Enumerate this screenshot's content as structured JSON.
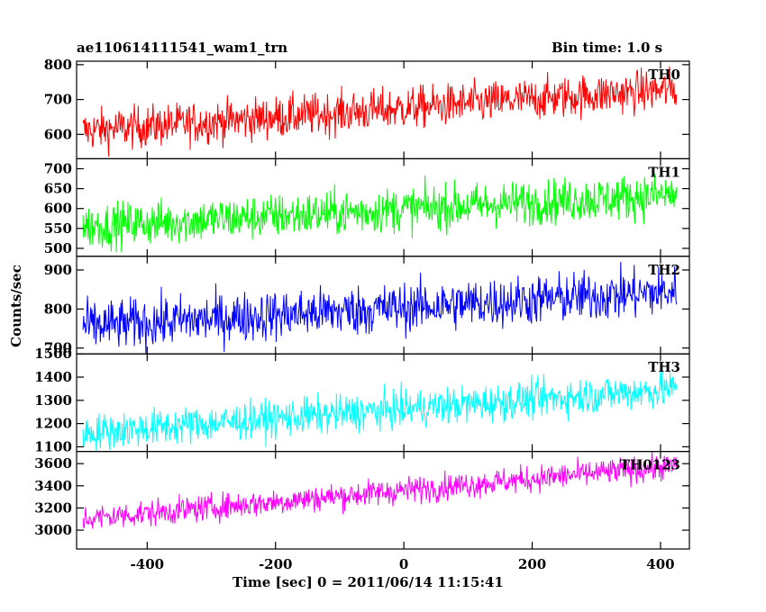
{
  "header": {
    "title": "ae110614111541_wam1_trn",
    "bin_time": "Bin time: 1.0 s"
  },
  "chart_data": {
    "type": "line",
    "title": "ae110614111541_wam1_trn",
    "xlabel": "Time [sec] 0 = 2011/06/14 11:15:41",
    "ylabel": "Counts/sec",
    "xlim": [
      -510,
      445
    ],
    "x_ticks": [
      -400,
      -200,
      0,
      200,
      400
    ],
    "x_range": [
      -500,
      425
    ],
    "panels": [
      {
        "label": "TH0",
        "color": "#ff0000",
        "ylim": [
          530,
          810
        ],
        "y_ticks": [
          600,
          700,
          800
        ],
        "trend_start": 610,
        "trend_end": 730,
        "noise": 30
      },
      {
        "label": "TH1",
        "color": "#00ff00",
        "ylim": [
          480,
          725
        ],
        "y_ticks": [
          500,
          550,
          600,
          650,
          700
        ],
        "trend_start": 555,
        "trend_end": 635,
        "noise": 28
      },
      {
        "label": "TH2",
        "color": "#0000ff",
        "ylim": [
          685,
          935
        ],
        "y_ticks": [
          700,
          800,
          900
        ],
        "trend_start": 755,
        "trend_end": 845,
        "noise": 32
      },
      {
        "label": "TH3",
        "color": "#00ffff",
        "ylim": [
          1080,
          1500
        ],
        "y_ticks": [
          1100,
          1200,
          1300,
          1400,
          1500
        ],
        "trend_start": 1160,
        "trend_end": 1350,
        "noise": 40
      },
      {
        "label": "TH0123",
        "color": "#ff00ff",
        "ylim": [
          2830,
          3710
        ],
        "y_ticks": [
          3000,
          3200,
          3400,
          3600
        ],
        "trend_start": 3100,
        "trend_end": 3580,
        "noise": 60
      }
    ]
  }
}
